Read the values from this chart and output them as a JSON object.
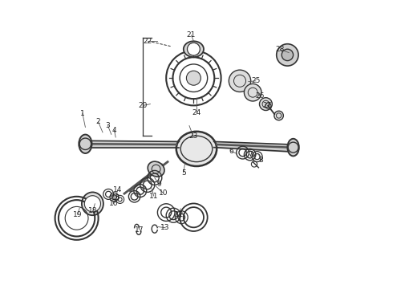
{
  "bg_color": "#ffffff",
  "line_color": "#333333",
  "text_color": "#222222",
  "label_fontsize": 6.5,
  "figsize": [
    4.9,
    3.6
  ],
  "dpi": 100
}
